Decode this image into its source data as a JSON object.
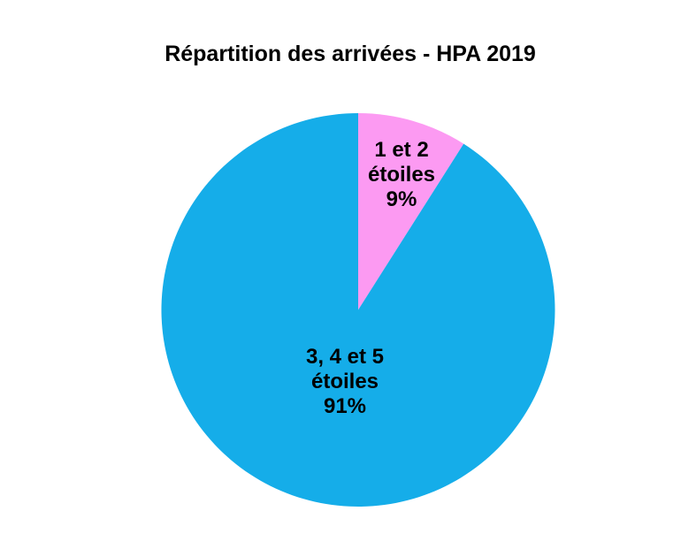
{
  "page": {
    "background_color": "#FFFFFF"
  },
  "chart_data": {
    "type": "pie",
    "title": "Répartition des arrivées - HPA 2019",
    "title_color": "#000000",
    "label_color": "#000000",
    "legend_position": "none",
    "direction": "clockwise",
    "start_angle_deg": 0,
    "slices": [
      {
        "label": "1 et 2 étoiles",
        "label_lines": [
          "1 et 2",
          "étoiles"
        ],
        "value": 9,
        "pct_label": "9%",
        "color": "#FC9AF2"
      },
      {
        "label": "3, 4 et 5 étoiles",
        "label_lines": [
          "3, 4 et 5",
          "étoiles"
        ],
        "value": 91,
        "pct_label": "91%",
        "color": "#15ADE9"
      }
    ]
  }
}
